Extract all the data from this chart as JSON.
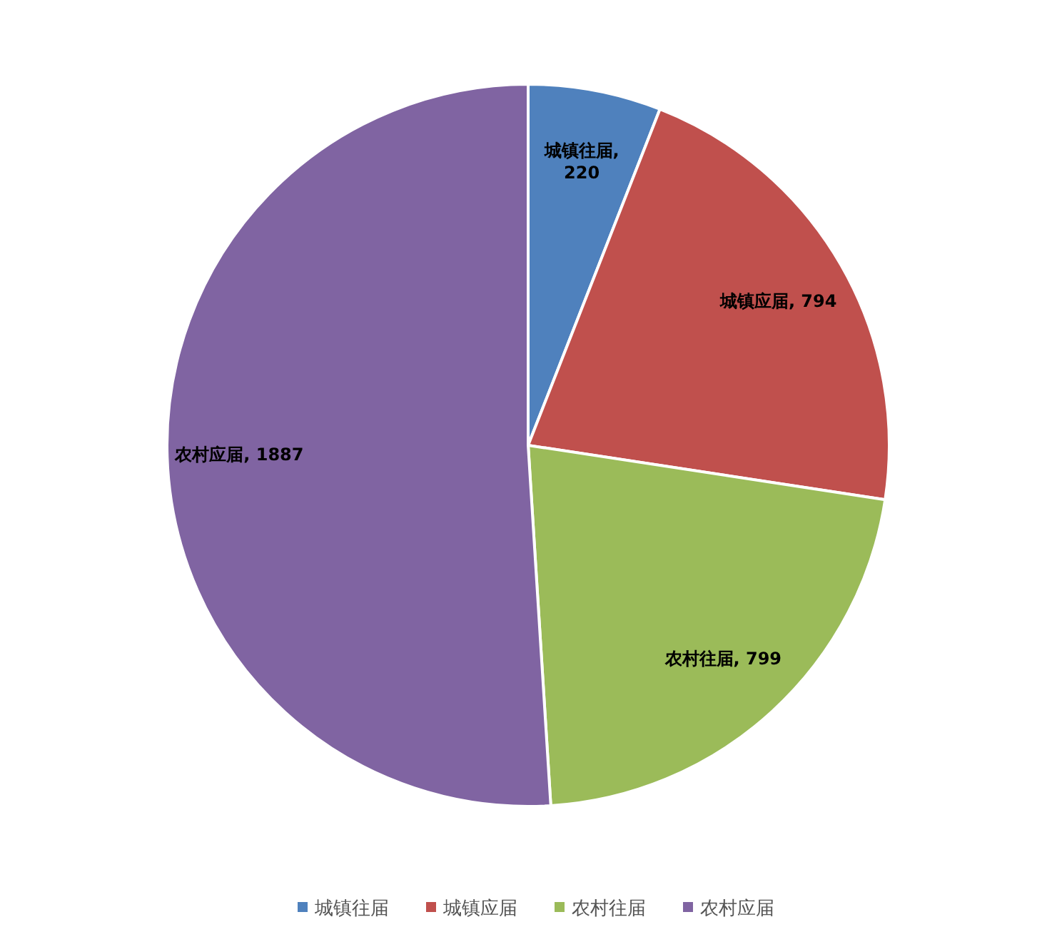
{
  "chart_data": {
    "type": "pie",
    "categories": [
      "城镇往届",
      "城镇应届",
      "农村往届",
      "农村应届"
    ],
    "values": [
      220,
      794,
      799,
      1887
    ],
    "colors": [
      "#4f81bd",
      "#c0504d",
      "#9bbb59",
      "#8064a2"
    ],
    "value_labels": [
      "城镇往届, 220",
      "城镇应届, 794",
      "农村往届, 799",
      "农村应届, 1887"
    ],
    "legend": "bottom"
  }
}
